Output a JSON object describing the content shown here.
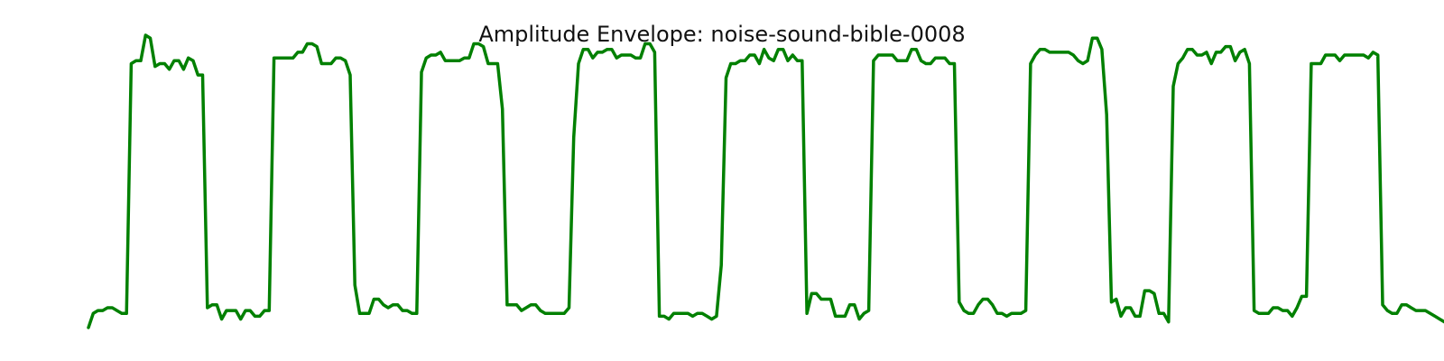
{
  "chart_data": {
    "type": "line",
    "title": "Amplitude Envelope: noise-sound-bible-0008",
    "xlabel": "",
    "ylabel": "",
    "axes_visible": false,
    "grid": false,
    "line_color": "#008000",
    "xlim": [
      0,
      261
    ],
    "ylim": [
      0,
      1.1
    ],
    "series": [
      {
        "values": [
          0.0,
          0.05,
          0.06,
          0.06,
          0.07,
          0.07,
          0.06,
          0.05,
          0.05,
          0.93,
          0.94,
          0.94,
          1.03,
          1.02,
          0.92,
          0.93,
          0.93,
          0.91,
          0.94,
          0.94,
          0.91,
          0.95,
          0.94,
          0.89,
          0.89,
          0.07,
          0.08,
          0.08,
          0.03,
          0.06,
          0.06,
          0.06,
          0.03,
          0.06,
          0.06,
          0.04,
          0.04,
          0.06,
          0.06,
          0.95,
          0.95,
          0.95,
          0.95,
          0.95,
          0.97,
          0.97,
          1.0,
          1.0,
          0.99,
          0.93,
          0.93,
          0.93,
          0.95,
          0.95,
          0.94,
          0.89,
          0.15,
          0.05,
          0.05,
          0.05,
          0.1,
          0.1,
          0.08,
          0.07,
          0.08,
          0.08,
          0.06,
          0.06,
          0.05,
          0.05,
          0.9,
          0.95,
          0.96,
          0.96,
          0.97,
          0.94,
          0.94,
          0.94,
          0.94,
          0.95,
          0.95,
          1.0,
          1.0,
          0.99,
          0.93,
          0.93,
          0.93,
          0.77,
          0.08,
          0.08,
          0.08,
          0.06,
          0.07,
          0.08,
          0.08,
          0.06,
          0.05,
          0.05,
          0.05,
          0.05,
          0.05,
          0.07,
          0.67,
          0.93,
          0.98,
          0.98,
          0.95,
          0.97,
          0.97,
          0.98,
          0.98,
          0.95,
          0.96,
          0.96,
          0.96,
          0.95,
          0.95,
          1.0,
          1.0,
          0.97,
          0.04,
          0.04,
          0.03,
          0.05,
          0.05,
          0.05,
          0.05,
          0.04,
          0.05,
          0.05,
          0.04,
          0.03,
          0.04,
          0.22,
          0.88,
          0.93,
          0.93,
          0.94,
          0.94,
          0.96,
          0.96,
          0.93,
          0.98,
          0.95,
          0.94,
          0.98,
          0.98,
          0.94,
          0.96,
          0.94,
          0.94,
          0.05,
          0.12,
          0.12,
          0.1,
          0.1,
          0.1,
          0.04,
          0.04,
          0.04,
          0.08,
          0.08,
          0.03,
          0.05,
          0.06,
          0.94,
          0.96,
          0.96,
          0.96,
          0.96,
          0.94,
          0.94,
          0.94,
          0.98,
          0.98,
          0.94,
          0.93,
          0.93,
          0.95,
          0.95,
          0.95,
          0.93,
          0.93,
          0.09,
          0.06,
          0.05,
          0.05,
          0.08,
          0.1,
          0.1,
          0.08,
          0.05,
          0.05,
          0.04,
          0.05,
          0.05,
          0.05,
          0.06,
          0.93,
          0.96,
          0.98,
          0.98,
          0.97,
          0.97,
          0.97,
          0.97,
          0.97,
          0.96,
          0.94,
          0.93,
          0.94,
          1.02,
          1.02,
          0.98,
          0.75,
          0.09,
          0.1,
          0.04,
          0.07,
          0.07,
          0.04,
          0.04,
          0.13,
          0.13,
          0.12,
          0.05,
          0.05,
          0.02,
          0.85,
          0.93,
          0.95,
          0.98,
          0.98,
          0.96,
          0.96,
          0.97,
          0.93,
          0.97,
          0.97,
          0.99,
          0.99,
          0.94,
          0.97,
          0.98,
          0.93,
          0.06,
          0.05,
          0.05,
          0.05,
          0.07,
          0.07,
          0.06,
          0.06,
          0.04,
          0.07,
          0.11,
          0.11,
          0.93,
          0.93,
          0.93,
          0.96,
          0.96,
          0.96,
          0.94,
          0.96,
          0.96,
          0.96,
          0.96,
          0.96,
          0.95,
          0.97,
          0.96,
          0.08,
          0.06,
          0.05,
          0.05,
          0.08,
          0.08,
          0.07,
          0.06,
          0.06,
          0.06,
          0.05,
          0.04,
          0.03,
          0.02
        ]
      }
    ]
  }
}
